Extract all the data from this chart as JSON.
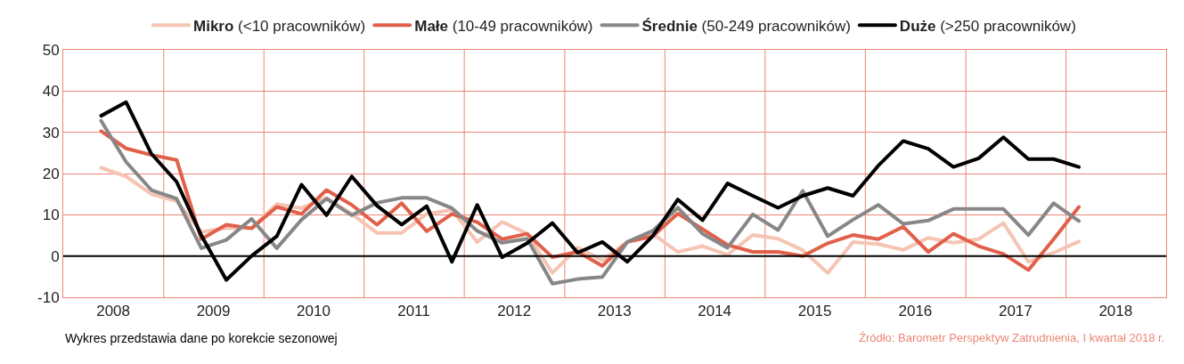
{
  "chart_data": {
    "type": "line",
    "x": [
      "2008-04-01",
      "2008-07-01",
      "2008-10-01",
      "2009-01-01",
      "2009-04-01",
      "2009-07-01",
      "2009-10-01",
      "2010-01-01",
      "2010-04-01",
      "2010-07-01",
      "2010-10-01",
      "2011-01-01",
      "2011-04-01",
      "2011-07-01",
      "2011-10-01",
      "2012-01-01",
      "2012-04-01",
      "2012-07-01",
      "2012-10-01",
      "2013-01-01",
      "2013-04-01",
      "2013-07-01",
      "2013-10-01",
      "2014-01-01",
      "2014-04-01",
      "2014-07-01",
      "2014-10-01",
      "2015-01-01",
      "2015-04-01",
      "2015-07-01",
      "2015-10-01",
      "2016-01-01",
      "2016-04-01",
      "2016-07-01",
      "2016-10-01",
      "2017-01-01",
      "2017-04-01",
      "2017-07-01",
      "2017-10-01",
      "2018-01-01"
    ],
    "series": [
      {
        "name": "Mikro (<10 pracowników)",
        "color": "#f5c4b3",
        "values": [
          21.4,
          19.3,
          15.0,
          13.3,
          5.8,
          6.8,
          6.8,
          12.6,
          11.6,
          14.1,
          10.2,
          5.6,
          5.6,
          10.2,
          11.2,
          3.4,
          8.3,
          5.4,
          -4.1,
          2.0,
          -1.0,
          3.4,
          5.4,
          1.0,
          2.4,
          0.3,
          5.1,
          4.2,
          1.4,
          -4.1,
          3.4,
          2.9,
          1.5,
          4.4,
          3.2,
          4.1,
          8.0,
          -1.4,
          0.8,
          3.5
        ]
      },
      {
        "name": "Małe (10-49 pracowników)",
        "color": "#e0604a",
        "values": [
          30.3,
          26.1,
          24.5,
          23.3,
          4.1,
          7.6,
          6.7,
          11.9,
          10.2,
          16.0,
          12.4,
          7.6,
          12.8,
          6.0,
          10.2,
          8.2,
          4.1,
          5.4,
          -0.3,
          1.0,
          -2.4,
          3.4,
          4.8,
          10.3,
          6.5,
          2.7,
          1.0,
          1.0,
          0.0,
          3.1,
          5.1,
          4.1,
          7.1,
          1.0,
          5.4,
          2.4,
          0.5,
          -3.4,
          4.1,
          11.9
        ]
      },
      {
        "name": "Średnie (50-249 pracowników)",
        "color": "#878787",
        "values": [
          32.8,
          22.8,
          16.0,
          13.9,
          1.9,
          3.9,
          9.0,
          1.9,
          8.8,
          13.9,
          9.9,
          12.9,
          14.1,
          14.1,
          11.6,
          6.1,
          3.2,
          4.2,
          -6.7,
          -5.6,
          -5.1,
          3.4,
          6.1,
          11.7,
          5.4,
          2.0,
          10.1,
          6.3,
          15.8,
          4.8,
          8.8,
          12.4,
          7.8,
          8.6,
          11.4,
          11.4,
          11.4,
          5.1,
          12.8,
          8.5
        ]
      },
      {
        "name": "Duże (>250 pracowników)",
        "color": "#000000",
        "values": [
          34.0,
          37.3,
          24.8,
          18.0,
          5.0,
          -5.8,
          0.0,
          4.8,
          17.3,
          9.9,
          19.3,
          12.2,
          7.6,
          12.1,
          -1.4,
          12.4,
          -0.3,
          3.1,
          8.0,
          0.8,
          3.4,
          -1.4,
          4.8,
          13.7,
          8.7,
          17.6,
          14.6,
          11.7,
          14.6,
          16.5,
          14.6,
          21.9,
          27.9,
          26.0,
          21.6,
          23.7,
          28.8,
          23.5,
          23.5,
          21.6
        ]
      }
    ],
    "xlim": [
      "2007-11-15",
      "2018-11-15"
    ],
    "xticks": [
      {
        "value": "2008-05-15",
        "label": "2008"
      },
      {
        "value": "2008-11-15",
        "label": null
      },
      {
        "value": "2009-05-15",
        "label": "2009"
      },
      {
        "value": "2009-11-15",
        "label": null
      },
      {
        "value": "2010-05-15",
        "label": "2010"
      },
      {
        "value": "2010-11-15",
        "label": null
      },
      {
        "value": "2011-05-15",
        "label": "2011"
      },
      {
        "value": "2011-11-15",
        "label": null
      },
      {
        "value": "2012-05-15",
        "label": "2012"
      },
      {
        "value": "2012-11-15",
        "label": null
      },
      {
        "value": "2013-05-15",
        "label": "2013"
      },
      {
        "value": "2013-11-15",
        "label": null
      },
      {
        "value": "2014-05-15",
        "label": "2014"
      },
      {
        "value": "2014-11-15",
        "label": null
      },
      {
        "value": "2015-05-15",
        "label": "2015"
      },
      {
        "value": "2015-11-15",
        "label": null
      },
      {
        "value": "2016-05-15",
        "label": "2016"
      },
      {
        "value": "2016-11-15",
        "label": null
      },
      {
        "value": "2017-05-15",
        "label": "2017"
      },
      {
        "value": "2017-11-15",
        "label": null
      },
      {
        "value": "2018-05-15",
        "label": "2018"
      }
    ],
    "ylim": [
      -10,
      50
    ],
    "yticks": [
      -10,
      0,
      10,
      20,
      30,
      40,
      50
    ],
    "grid": true,
    "legend": "top",
    "marker": "none",
    "line_style": "solid",
    "ref_lines": [
      {
        "axis": "y",
        "value": 0,
        "color": "#000000"
      }
    ],
    "annotations": [
      "Wykres przedstawia dane po korekcie sezonowej",
      "Źródło: Barometr Perspektyw Zatrudnienia, I kwartał 2018 r."
    ]
  }
}
